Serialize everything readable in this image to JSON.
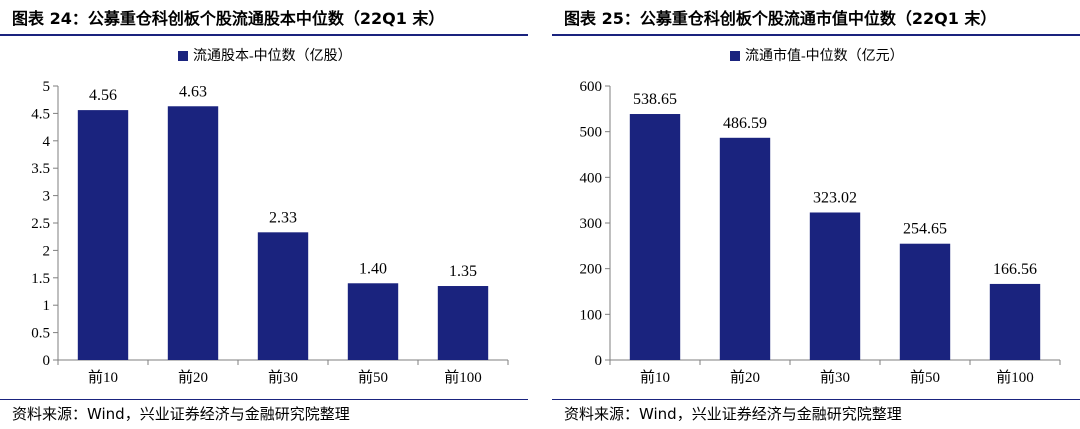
{
  "sources_label": "资料来源：Wind，兴业证券经济与金融研究院整理",
  "colors": {
    "bar": "#1a237e",
    "rule": "#1a237e",
    "axis": "#7f7f7f"
  },
  "chart_data": [
    {
      "type": "bar",
      "title": "图表 24：公募重仓科创板个股流通股本中位数（22Q1 末）",
      "categories": [
        "前10",
        "前20",
        "前30",
        "前50",
        "前100"
      ],
      "series": [
        {
          "name": "流通股本-中位数（亿股）",
          "values": [
            4.56,
            4.63,
            2.33,
            1.4,
            1.35
          ]
        }
      ],
      "value_labels": [
        "4.56",
        "4.63",
        "2.33",
        "1.40",
        "1.35"
      ],
      "ylim": [
        0,
        5
      ],
      "yticks": [
        "0",
        "0.5",
        "1",
        "1.5",
        "2",
        "2.5",
        "3",
        "3.5",
        "4",
        "4.5",
        "5"
      ],
      "ytick_values": [
        0,
        0.5,
        1,
        1.5,
        2,
        2.5,
        3,
        3.5,
        4,
        4.5,
        5
      ],
      "legend": "top-center",
      "grid": false
    },
    {
      "type": "bar",
      "title": "图表 25：公募重仓科创板个股流通市值中位数（22Q1 末）",
      "categories": [
        "前10",
        "前20",
        "前30",
        "前50",
        "前100"
      ],
      "series": [
        {
          "name": "流通市值-中位数（亿元）",
          "values": [
            538.65,
            486.59,
            323.02,
            254.65,
            166.56
          ]
        }
      ],
      "value_labels": [
        "538.65",
        "486.59",
        "323.02",
        "254.65",
        "166.56"
      ],
      "ylim": [
        0,
        600
      ],
      "yticks": [
        "0",
        "100",
        "200",
        "300",
        "400",
        "500",
        "600"
      ],
      "ytick_values": [
        0,
        100,
        200,
        300,
        400,
        500,
        600
      ],
      "legend": "top-center",
      "grid": false
    }
  ]
}
